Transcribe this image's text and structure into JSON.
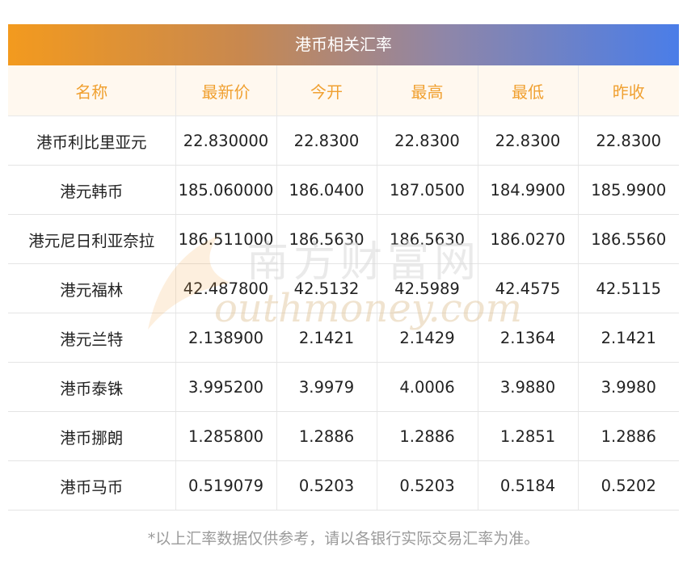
{
  "title": "港币相关汇率",
  "columns": [
    "名称",
    "最新价",
    "今开",
    "最高",
    "最低",
    "昨收"
  ],
  "rows": [
    [
      "港币利比里亚元",
      "22.830000",
      "22.8300",
      "22.8300",
      "22.8300",
      "22.8300"
    ],
    [
      "港元韩币",
      "185.060000",
      "186.0400",
      "187.0500",
      "184.9900",
      "185.9900"
    ],
    [
      "港元尼日利亚奈拉",
      "186.511000",
      "186.5630",
      "186.5630",
      "186.0270",
      "186.5560"
    ],
    [
      "港元福林",
      "42.487800",
      "42.5132",
      "42.5989",
      "42.4575",
      "42.5115"
    ],
    [
      "港元兰特",
      "2.138900",
      "2.1421",
      "2.1429",
      "2.1364",
      "2.1421"
    ],
    [
      "港币泰铢",
      "3.995200",
      "3.9979",
      "4.0006",
      "3.9880",
      "3.9980"
    ],
    [
      "港币挪朗",
      "1.285800",
      "1.2886",
      "1.2886",
      "1.2851",
      "1.2886"
    ],
    [
      "港币马币",
      "0.519079",
      "0.5203",
      "0.5203",
      "0.5184",
      "0.5202"
    ]
  ],
  "note": "*以上汇率数据仅供参考，请以各银行实际交易汇率为准。",
  "watermark": {
    "cn": "南方财富网",
    "en": "outhmoney.com"
  },
  "colors": {
    "accent": "#f0a030",
    "header_bg": "#fff8ef",
    "gradient_start": "#f39a1e",
    "gradient_end": "#4a7de8"
  }
}
